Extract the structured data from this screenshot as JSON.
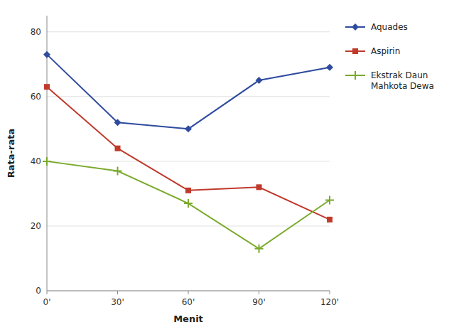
{
  "chart_data": {
    "type": "line",
    "x": [
      0,
      30,
      60,
      90,
      120
    ],
    "xlim": [
      0,
      120
    ],
    "xticks": [
      {
        "value": 0,
        "label": "0'"
      },
      {
        "value": 30,
        "label": "30'"
      },
      {
        "value": 60,
        "label": "60'"
      },
      {
        "value": 90,
        "label": "90'"
      },
      {
        "value": 120,
        "label": "120'"
      }
    ],
    "series": [
      {
        "name": "Aquades",
        "color": "#2e4b9e",
        "marker": "diamond",
        "values": [
          73,
          52,
          50,
          65,
          69
        ]
      },
      {
        "name": "Aspirin",
        "color": "#c0392b",
        "marker": "square",
        "values": [
          63,
          44,
          31,
          32,
          22
        ]
      },
      {
        "name": "Ekstrak Daun\nMahkota Dewa",
        "color": "#7aaa2c",
        "marker": "plus",
        "values": [
          40,
          37,
          27,
          13,
          28
        ]
      }
    ],
    "x_label": "Menit",
    "y_label": "Rata-rata",
    "ylim": [
      0,
      85
    ],
    "yticks": [
      0,
      20,
      40,
      60,
      80
    ],
    "grid": true,
    "legend": "right"
  }
}
